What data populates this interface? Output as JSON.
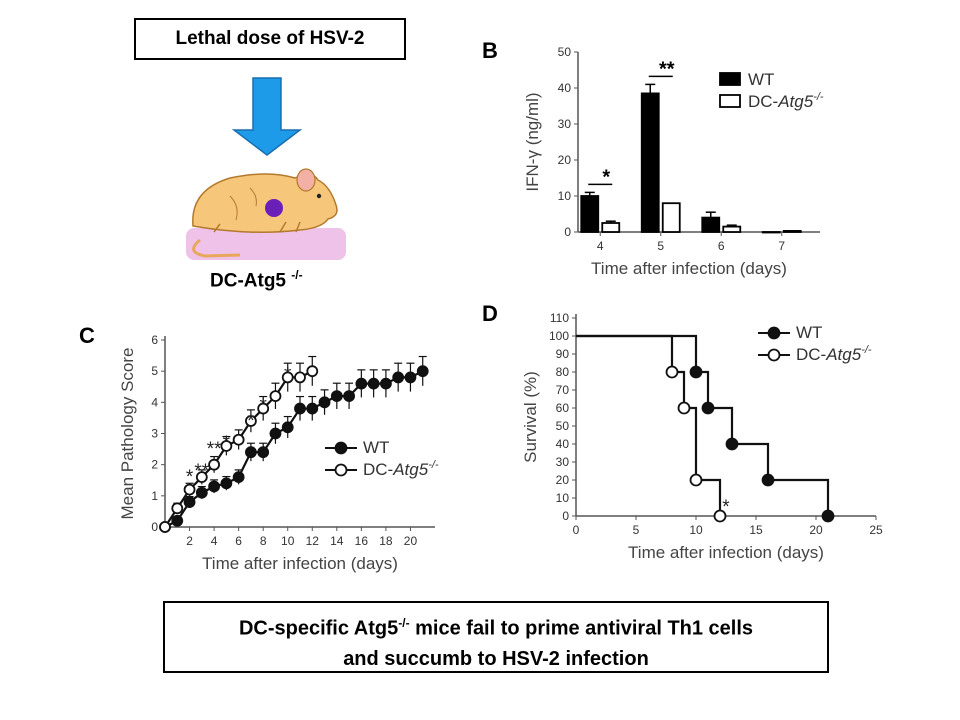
{
  "top_box": {
    "text": "Lethal dose of HSV-2"
  },
  "mouse_label": {
    "text": "DC-Atg5",
    "sup": "-/-"
  },
  "caption": {
    "line1_pre": "DC-specific Atg5",
    "line1_sup": "-/-",
    "line1_post": " mice fail to prime antiviral Th1 cells",
    "line2": "and succumb to HSV-2 infection"
  },
  "colors": {
    "arrow_fill": "#1e9be8",
    "arrow_stroke": "#1a6fb0",
    "mouse_body": "#f6c67a",
    "mouse_spot": "#6a1fb8",
    "platform": "#e8a8e0"
  },
  "chart_data": [
    {
      "panel": "B",
      "type": "bar",
      "ylabel": "IFN-γ (ng/ml)",
      "xlabel": "Time after infection (days)",
      "categories": [
        "4",
        "5",
        "6",
        "7"
      ],
      "ylim": [
        0,
        50
      ],
      "yticks": [
        0,
        10,
        20,
        30,
        40,
        50
      ],
      "series": [
        {
          "name": "WT",
          "values": [
            10,
            38.5,
            4,
            0
          ],
          "errors": [
            1,
            2.5,
            1.5,
            0
          ]
        },
        {
          "name": "DC-Atg5-/-",
          "values": [
            2.5,
            8,
            1.5,
            0.3
          ],
          "errors": [
            0.5,
            0,
            0.4,
            0
          ]
        }
      ],
      "annotations": [
        {
          "category": "4",
          "text": "*"
        },
        {
          "category": "5",
          "text": "**"
        }
      ],
      "legend_placement": "top-right"
    },
    {
      "panel": "C",
      "type": "line",
      "ylabel": "Mean Pathology Score",
      "xlabel": "Time after infection (days)",
      "xlim": [
        0,
        22
      ],
      "ylim": [
        0,
        6
      ],
      "xticks": [
        2,
        4,
        6,
        8,
        10,
        12,
        14,
        16,
        18,
        20
      ],
      "yticks": [
        0,
        1,
        2,
        3,
        4,
        5,
        6
      ],
      "series": [
        {
          "name": "WT",
          "x": [
            0,
            1,
            2,
            3,
            4,
            5,
            6,
            7,
            8,
            9,
            10,
            11,
            12,
            13,
            14,
            15,
            16,
            17,
            18,
            19,
            20,
            21
          ],
          "y": [
            0,
            0.2,
            0.8,
            1.1,
            1.3,
            1.4,
            1.6,
            2.4,
            2.4,
            3.0,
            3.2,
            3.8,
            3.8,
            4.0,
            4.2,
            4.2,
            4.6,
            4.6,
            4.6,
            4.8,
            4.8,
            5.0
          ]
        },
        {
          "name": "DC-Atg5-/-",
          "x": [
            0,
            1,
            2,
            3,
            4,
            5,
            6,
            7,
            8,
            9,
            10,
            11,
            12
          ],
          "y": [
            0,
            0.6,
            1.2,
            1.6,
            2.0,
            2.6,
            2.8,
            3.4,
            3.8,
            4.2,
            4.8,
            4.8,
            5.0
          ]
        }
      ],
      "annotations": [
        {
          "x": 2,
          "y": 1.6,
          "text": "*"
        },
        {
          "x": 3,
          "y": 1.8,
          "text": "**"
        },
        {
          "x": 4,
          "y": 2.5,
          "text": "**"
        },
        {
          "x": 5,
          "y": 2.7,
          "text": "*"
        },
        {
          "x": 7,
          "y": 3.4,
          "text": "*"
        },
        {
          "x": 8,
          "y": 3.9,
          "text": "*"
        },
        {
          "x": 10,
          "y": 4.9,
          "text": "*"
        }
      ],
      "legend_placement": "right"
    },
    {
      "panel": "D",
      "type": "line",
      "ylabel": "Survival (%)",
      "xlabel": "Time after infection (days)",
      "xlim": [
        0,
        25
      ],
      "ylim": [
        0,
        110
      ],
      "xticks": [
        0,
        5,
        10,
        15,
        20,
        25
      ],
      "yticks": [
        0,
        10,
        20,
        30,
        40,
        50,
        60,
        70,
        80,
        90,
        100,
        110
      ],
      "series": [
        {
          "name": "WT",
          "x": [
            0,
            10,
            11,
            13,
            16,
            21
          ],
          "y": [
            100,
            80,
            60,
            40,
            20,
            0
          ]
        },
        {
          "name": "DC-Atg5-/-",
          "x": [
            0,
            8,
            9,
            10,
            12
          ],
          "y": [
            100,
            80,
            60,
            20,
            0
          ]
        }
      ],
      "annotations": [
        {
          "x": 12.5,
          "y": 5,
          "text": "*"
        }
      ],
      "legend_placement": "top-right"
    }
  ]
}
